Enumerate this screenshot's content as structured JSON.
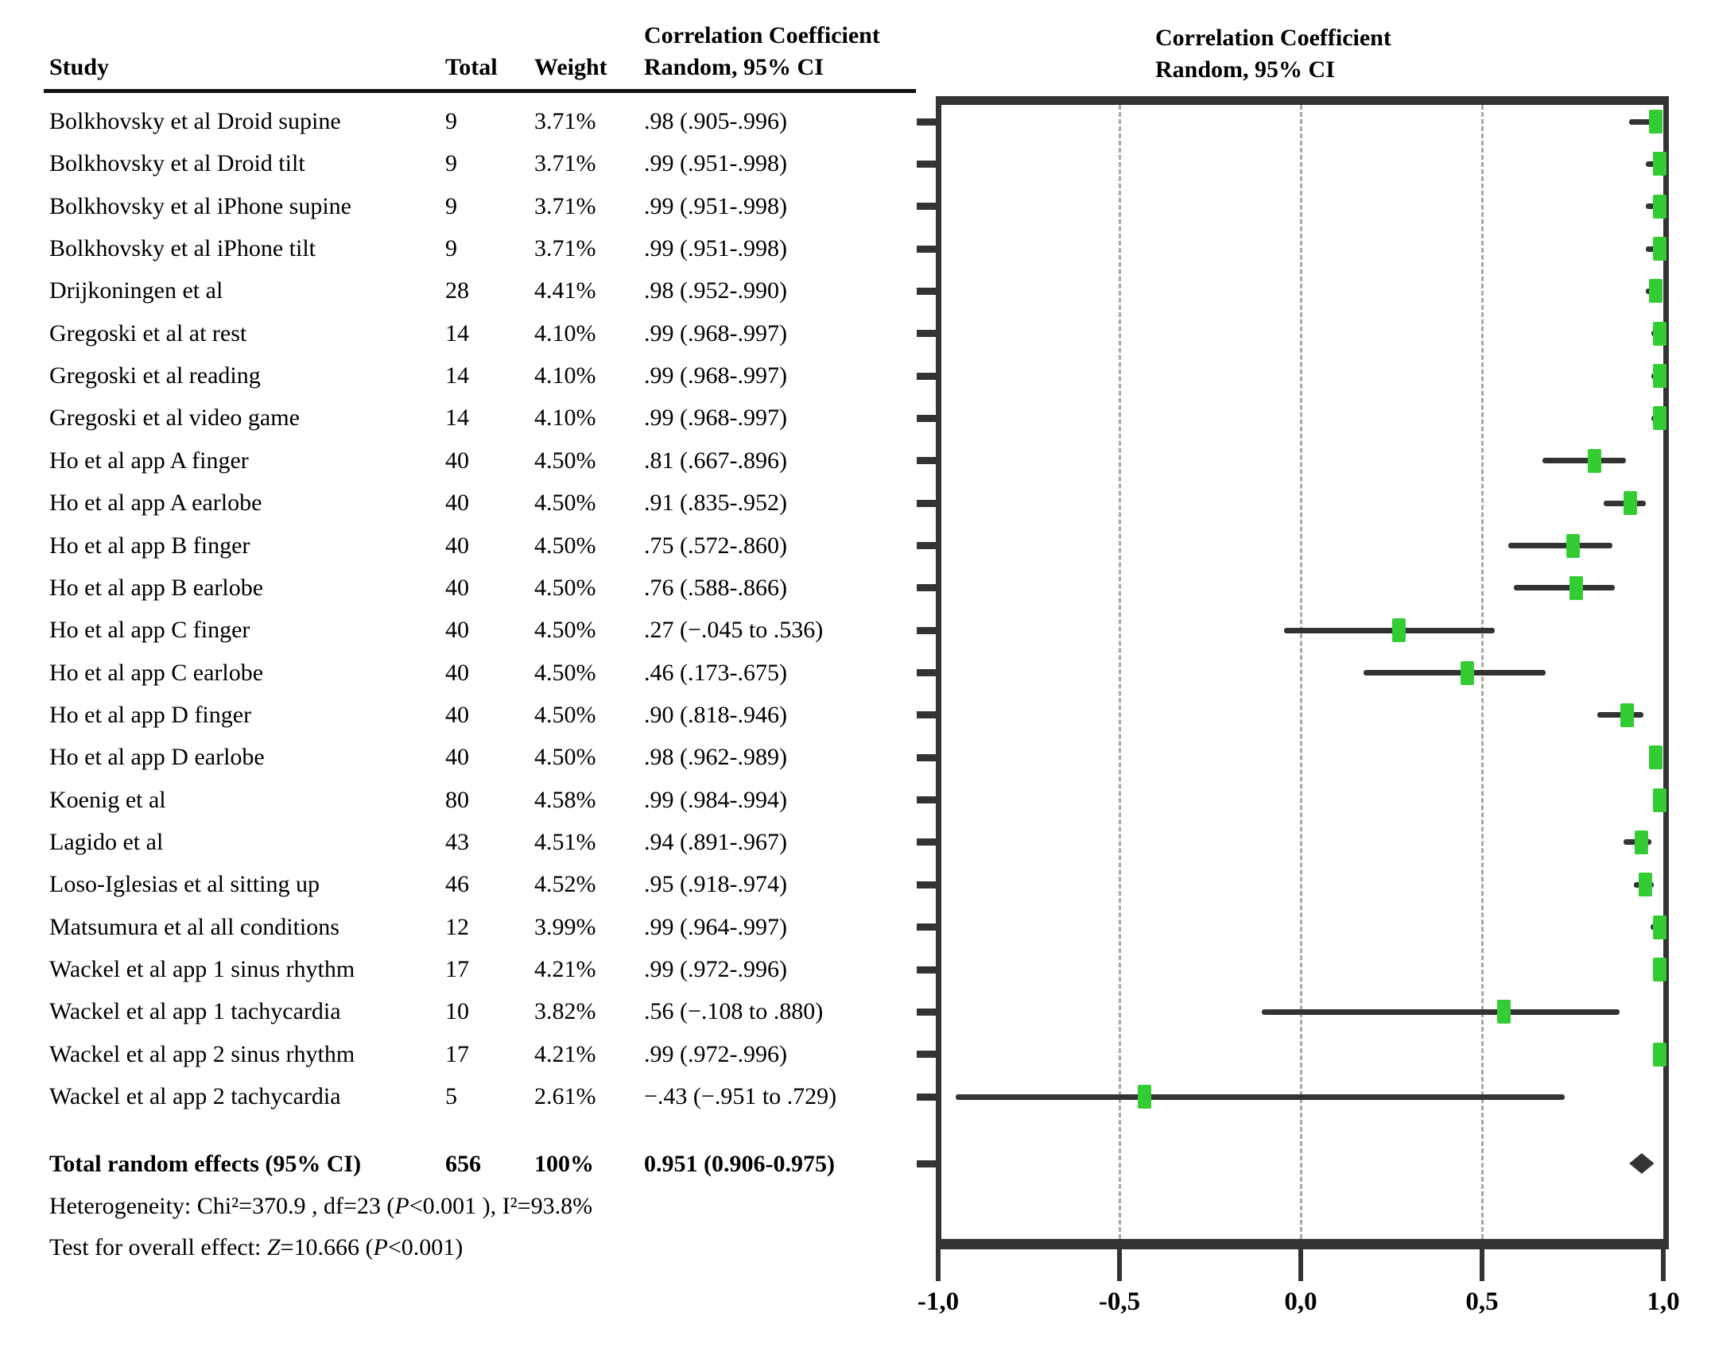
{
  "table": {
    "headers": {
      "study": "Study",
      "total": "Total",
      "weight": "Weight",
      "ci_line1": "Correlation Coefficient",
      "ci_line2": "Random, 95% CI"
    },
    "total_row": {
      "label": "Total random effects (95% CI)",
      "total": "656",
      "weight": "100%",
      "ci_text": "0.951 (0.906-0.975)"
    },
    "heterogeneity_segments": [
      {
        "text": "Heterogeneity: Chi²=370.9 , df=23 (",
        "italic": false
      },
      {
        "text": "P",
        "italic": true
      },
      {
        "text": "<0.001 ), I²=93.8%",
        "italic": false
      }
    ],
    "overall_effect_segments": [
      {
        "text": "Test for overall effect: ",
        "italic": false
      },
      {
        "text": "Z",
        "italic": true
      },
      {
        "text": "=10.666 (",
        "italic": false
      },
      {
        "text": "P",
        "italic": true
      },
      {
        "text": "<0.001)",
        "italic": false
      }
    ]
  },
  "plot": {
    "header_line1": "Correlation Coefficient",
    "header_line2": "Random, 95% CI"
  },
  "colors": {
    "marker_green": "#33cc33",
    "line_dark": "#333333",
    "grid_gray": "#a8a8a8",
    "text_black": "#000000"
  },
  "chart_data": {
    "type": "scatter",
    "subtype": "forest-plot",
    "title": "Correlation Coefficient Random, 95% CI",
    "xlabel": "",
    "ylabel": "",
    "xlim": [
      -1.0,
      1.0
    ],
    "x_ticks": [
      -1.0,
      -0.5,
      0.0,
      0.5,
      1.0
    ],
    "x_tick_labels": [
      "-1,0",
      "-0,5",
      "0,0",
      "0,5",
      "1,0"
    ],
    "gridlines": [
      -0.5,
      0.0,
      0.5
    ],
    "grid": true,
    "legend_position": "none",
    "studies": [
      {
        "study": "Bolkhovsky et al Droid supine",
        "total": "9",
        "weight": "3.71%",
        "ci_text": ".98 (.905-.996)",
        "r": 0.98,
        "ci_low": 0.905,
        "ci_high": 0.996
      },
      {
        "study": "Bolkhovsky et al Droid tilt",
        "total": "9",
        "weight": "3.71%",
        "ci_text": ".99 (.951-.998)",
        "r": 0.99,
        "ci_low": 0.951,
        "ci_high": 0.998
      },
      {
        "study": "Bolkhovsky et al iPhone supine",
        "total": "9",
        "weight": "3.71%",
        "ci_text": ".99 (.951-.998)",
        "r": 0.99,
        "ci_low": 0.951,
        "ci_high": 0.998
      },
      {
        "study": "Bolkhovsky et al iPhone tilt",
        "total": "9",
        "weight": "3.71%",
        "ci_text": ".99 (.951-.998)",
        "r": 0.99,
        "ci_low": 0.951,
        "ci_high": 0.998
      },
      {
        "study": "Drijkoningen et al",
        "total": "28",
        "weight": "4.41%",
        "ci_text": ".98 (.952-.990)",
        "r": 0.98,
        "ci_low": 0.952,
        "ci_high": 0.99
      },
      {
        "study": "Gregoski et al at rest",
        "total": "14",
        "weight": "4.10%",
        "ci_text": ".99 (.968-.997)",
        "r": 0.99,
        "ci_low": 0.968,
        "ci_high": 0.997
      },
      {
        "study": "Gregoski et al reading",
        "total": "14",
        "weight": "4.10%",
        "ci_text": ".99 (.968-.997)",
        "r": 0.99,
        "ci_low": 0.968,
        "ci_high": 0.997
      },
      {
        "study": "Gregoski et al video game",
        "total": "14",
        "weight": "4.10%",
        "ci_text": ".99 (.968-.997)",
        "r": 0.99,
        "ci_low": 0.968,
        "ci_high": 0.997
      },
      {
        "study": "Ho et al app A finger",
        "total": "40",
        "weight": "4.50%",
        "ci_text": ".81 (.667-.896)",
        "r": 0.81,
        "ci_low": 0.667,
        "ci_high": 0.896
      },
      {
        "study": "Ho et al app A earlobe",
        "total": "40",
        "weight": "4.50%",
        "ci_text": ".91 (.835-.952)",
        "r": 0.91,
        "ci_low": 0.835,
        "ci_high": 0.952
      },
      {
        "study": "Ho et al app B finger",
        "total": "40",
        "weight": "4.50%",
        "ci_text": ".75 (.572-.860)",
        "r": 0.75,
        "ci_low": 0.572,
        "ci_high": 0.86
      },
      {
        "study": "Ho et al app B earlobe",
        "total": "40",
        "weight": "4.50%",
        "ci_text": ".76 (.588-.866)",
        "r": 0.76,
        "ci_low": 0.588,
        "ci_high": 0.866
      },
      {
        "study": "Ho et al app C finger",
        "total": "40",
        "weight": "4.50%",
        "ci_text": ".27 (−.045 to .536)",
        "r": 0.27,
        "ci_low": -0.045,
        "ci_high": 0.536
      },
      {
        "study": "Ho et al app C earlobe",
        "total": "40",
        "weight": "4.50%",
        "ci_text": ".46 (.173-.675)",
        "r": 0.46,
        "ci_low": 0.173,
        "ci_high": 0.675
      },
      {
        "study": "Ho et al app D finger",
        "total": "40",
        "weight": "4.50%",
        "ci_text": ".90 (.818-.946)",
        "r": 0.9,
        "ci_low": 0.818,
        "ci_high": 0.946
      },
      {
        "study": "Ho et al app D earlobe",
        "total": "40",
        "weight": "4.50%",
        "ci_text": ".98 (.962-.989)",
        "r": 0.98,
        "ci_low": 0.962,
        "ci_high": 0.989
      },
      {
        "study": "Koenig et al",
        "total": "80",
        "weight": "4.58%",
        "ci_text": ".99 (.984-.994)",
        "r": 0.99,
        "ci_low": 0.984,
        "ci_high": 0.994
      },
      {
        "study": "Lagido et al",
        "total": "43",
        "weight": "4.51%",
        "ci_text": ".94 (.891-.967)",
        "r": 0.94,
        "ci_low": 0.891,
        "ci_high": 0.967
      },
      {
        "study": "Loso-Iglesias et al sitting up",
        "total": "46",
        "weight": "4.52%",
        "ci_text": ".95 (.918-.974)",
        "r": 0.95,
        "ci_low": 0.918,
        "ci_high": 0.974
      },
      {
        "study": "Matsumura et al all conditions",
        "total": "12",
        "weight": "3.99%",
        "ci_text": ".99 (.964-.997)",
        "r": 0.99,
        "ci_low": 0.964,
        "ci_high": 0.997
      },
      {
        "study": "Wackel et al app 1 sinus rhythm",
        "total": "17",
        "weight": "4.21%",
        "ci_text": ".99 (.972-.996)",
        "r": 0.99,
        "ci_low": 0.972,
        "ci_high": 0.996
      },
      {
        "study": "Wackel et al app 1 tachycardia",
        "total": "10",
        "weight": "3.82%",
        "ci_text": ".56 (−.108 to .880)",
        "r": 0.56,
        "ci_low": -0.108,
        "ci_high": 0.88
      },
      {
        "study": "Wackel et al app 2 sinus rhythm",
        "total": "17",
        "weight": "4.21%",
        "ci_text": ".99 (.972-.996)",
        "r": 0.99,
        "ci_low": 0.972,
        "ci_high": 0.996
      },
      {
        "study": "Wackel et al app 2 tachycardia",
        "total": "5",
        "weight": "2.61%",
        "ci_text": "−.43 (−.951 to .729)",
        "r": -0.43,
        "ci_low": -0.951,
        "ci_high": 0.729
      }
    ],
    "summary": {
      "label": "Total random effects (95% CI)",
      "total": 656,
      "weight_pct": 100,
      "r": 0.951,
      "ci_low": 0.906,
      "ci_high": 0.975
    },
    "heterogeneity": "Heterogeneity: Chi²=370.9 , df=23 (P<0.001 ), I²=93.8%",
    "overall_effect": "Test for overall effect: Z=10.666 (P<0.001)"
  }
}
